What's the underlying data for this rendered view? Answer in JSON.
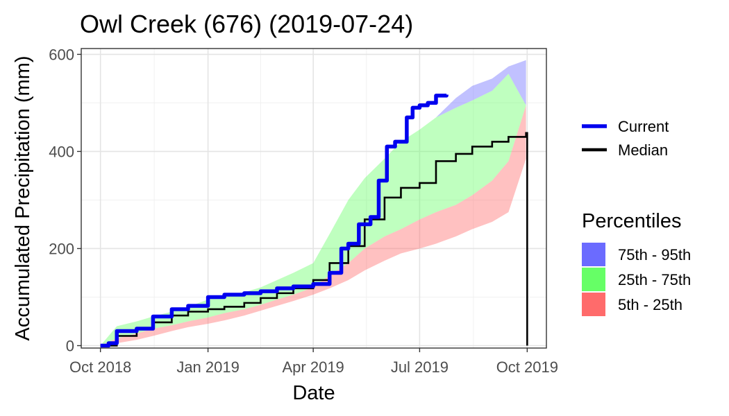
{
  "chart_data": {
    "type": "area",
    "title": "Owl Creek (676) (2019-07-24)",
    "xlabel": "Date",
    "ylabel": "Accumulated Precipitation (mm)",
    "xlim": [
      "2018-10-01",
      "2019-10-01"
    ],
    "ylim": [
      -5,
      612
    ],
    "x_ticks": [
      {
        "date": "2018-10-01",
        "label": "Oct 2018"
      },
      {
        "date": "2019-01-01",
        "label": "Jan 2019"
      },
      {
        "date": "2019-04-01",
        "label": "Apr 2019"
      },
      {
        "date": "2019-07-01",
        "label": "Jul 2019"
      },
      {
        "date": "2019-10-01",
        "label": "Oct 2019"
      }
    ],
    "y_ticks": [
      0,
      200,
      400,
      600
    ],
    "grid": true,
    "legend": {
      "position": "right",
      "lines": [
        {
          "label": "Current",
          "color": "#0000ee"
        },
        {
          "label": "Median",
          "color": "#000000"
        }
      ],
      "bands_title": "Percentiles",
      "bands": [
        {
          "label": "75th - 95th",
          "color": "#6b6bff"
        },
        {
          "label": "25th - 75th",
          "color": "#66ff66"
        },
        {
          "label": "5th - 25th",
          "color": "#ff6b6b"
        }
      ]
    },
    "dates": [
      "2018-10-01",
      "2018-10-15",
      "2018-11-01",
      "2018-11-15",
      "2018-12-01",
      "2018-12-15",
      "2019-01-01",
      "2019-01-15",
      "2019-02-01",
      "2019-02-15",
      "2019-03-01",
      "2019-03-15",
      "2019-04-01",
      "2019-04-15",
      "2019-05-01",
      "2019-05-15",
      "2019-06-01",
      "2019-06-15",
      "2019-07-01",
      "2019-07-15",
      "2019-08-01",
      "2019-08-15",
      "2019-09-01",
      "2019-09-15",
      "2019-09-30"
    ],
    "bands": {
      "p5": [
        0,
        5,
        12,
        20,
        30,
        38,
        45,
        52,
        62,
        72,
        82,
        92,
        105,
        118,
        135,
        155,
        175,
        190,
        200,
        210,
        225,
        240,
        255,
        275,
        385
      ],
      "p25": [
        0,
        15,
        25,
        35,
        42,
        50,
        58,
        67,
        75,
        84,
        95,
        105,
        120,
        145,
        170,
        200,
        225,
        240,
        260,
        275,
        290,
        310,
        340,
        380,
        495
      ],
      "p75": [
        0,
        40,
        50,
        60,
        70,
        80,
        95,
        102,
        110,
        120,
        135,
        150,
        170,
        230,
        300,
        345,
        385,
        420,
        445,
        470,
        490,
        505,
        525,
        560,
        495
      ],
      "p95": [
        0,
        40,
        50,
        60,
        70,
        80,
        95,
        102,
        110,
        120,
        135,
        150,
        170,
        230,
        300,
        345,
        385,
        420,
        445,
        470,
        510,
        535,
        550,
        575,
        588
      ]
    },
    "series": [
      {
        "name": "Current",
        "x": [
          "2018-10-01",
          "2018-10-08",
          "2018-10-15",
          "2018-11-01",
          "2018-11-15",
          "2018-12-01",
          "2018-12-15",
          "2019-01-01",
          "2019-01-15",
          "2019-02-01",
          "2019-02-15",
          "2019-03-01",
          "2019-03-15",
          "2019-04-01",
          "2019-04-15",
          "2019-04-25",
          "2019-05-01",
          "2019-05-10",
          "2019-05-20",
          "2019-05-27",
          "2019-06-03",
          "2019-06-10",
          "2019-06-20",
          "2019-06-25",
          "2019-07-01",
          "2019-07-08",
          "2019-07-15",
          "2019-07-24"
        ],
        "values": [
          0,
          5,
          30,
          35,
          60,
          75,
          82,
          100,
          105,
          108,
          112,
          118,
          122,
          127,
          150,
          200,
          210,
          250,
          265,
          340,
          410,
          420,
          470,
          490,
          495,
          500,
          515,
          517
        ]
      },
      {
        "name": "Median",
        "x": [
          "2018-10-01",
          "2018-10-15",
          "2018-11-01",
          "2018-11-15",
          "2018-12-01",
          "2018-12-15",
          "2019-01-01",
          "2019-01-15",
          "2019-02-01",
          "2019-02-15",
          "2019-03-01",
          "2019-03-15",
          "2019-04-01",
          "2019-04-15",
          "2019-05-01",
          "2019-05-15",
          "2019-06-01",
          "2019-06-15",
          "2019-07-01",
          "2019-07-15",
          "2019-08-01",
          "2019-08-15",
          "2019-09-01",
          "2019-09-15",
          "2019-09-30",
          "2019-10-01"
        ],
        "values": [
          0,
          20,
          35,
          48,
          62,
          70,
          75,
          80,
          88,
          98,
          108,
          118,
          135,
          170,
          205,
          260,
          305,
          325,
          335,
          380,
          395,
          410,
          420,
          430,
          438,
          0
        ]
      }
    ]
  }
}
